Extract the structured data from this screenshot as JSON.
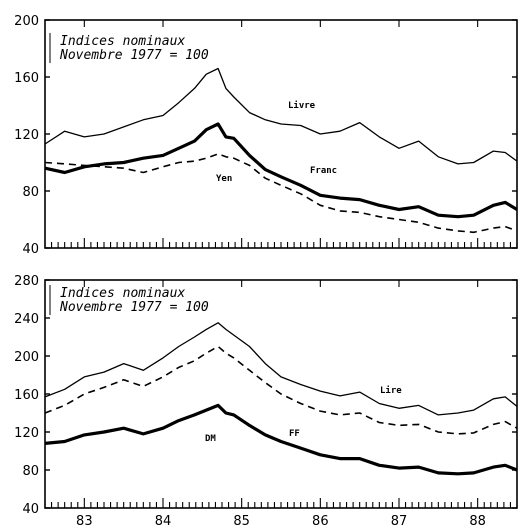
{
  "chart_data": [
    {
      "type": "line",
      "title": "",
      "xlabel": "",
      "ylabel": "",
      "annotation": [
        "Indices nominaux",
        "Novembre 1977 = 100"
      ],
      "ylim": [
        40,
        200
      ],
      "yticks": [
        40,
        80,
        120,
        160,
        200
      ],
      "xlim": [
        82.5,
        88.5
      ],
      "xticks": [
        83,
        84,
        85,
        86,
        87,
        88
      ],
      "xtick_labels": [
        "83",
        "84",
        "85",
        "86",
        "87",
        "88"
      ],
      "grid": false,
      "series": [
        {
          "name": "Livre",
          "style": "thin",
          "x": [
            82.5,
            82.75,
            83.0,
            83.25,
            83.5,
            83.75,
            84.0,
            84.2,
            84.4,
            84.55,
            84.7,
            84.8,
            84.9,
            85.1,
            85.3,
            85.5,
            85.75,
            86.0,
            86.25,
            86.5,
            86.75,
            87.0,
            87.25,
            87.5,
            87.75,
            87.95,
            88.2,
            88.35,
            88.5
          ],
          "y": [
            113,
            122,
            118,
            120,
            125,
            130,
            133,
            142,
            152,
            162,
            166,
            152,
            146,
            135,
            130,
            127,
            126,
            120,
            122,
            128,
            118,
            110,
            115,
            104,
            99,
            100,
            108,
            107,
            101
          ]
        },
        {
          "name": "Franc",
          "style": "thick",
          "x": [
            82.5,
            82.75,
            83.0,
            83.25,
            83.5,
            83.75,
            84.0,
            84.2,
            84.4,
            84.55,
            84.7,
            84.8,
            84.9,
            85.1,
            85.3,
            85.5,
            85.75,
            86.0,
            86.25,
            86.5,
            86.75,
            87.0,
            87.25,
            87.5,
            87.75,
            87.95,
            88.2,
            88.35,
            88.5
          ],
          "y": [
            96,
            93,
            97,
            99,
            100,
            103,
            105,
            110,
            115,
            123,
            127,
            118,
            117,
            105,
            95,
            90,
            84,
            77,
            75,
            74,
            70,
            67,
            69,
            63,
            62,
            63,
            70,
            72,
            67
          ]
        },
        {
          "name": "Yen",
          "style": "dashed",
          "x": [
            82.5,
            82.75,
            83.0,
            83.25,
            83.5,
            83.75,
            84.0,
            84.2,
            84.4,
            84.55,
            84.7,
            84.8,
            84.9,
            85.1,
            85.3,
            85.5,
            85.75,
            86.0,
            86.25,
            86.5,
            86.75,
            87.0,
            87.25,
            87.5,
            87.75,
            87.95,
            88.2,
            88.35,
            88.5
          ],
          "y": [
            100,
            99,
            98,
            97,
            96,
            93,
            97,
            100,
            101,
            103,
            106,
            104,
            103,
            98,
            89,
            84,
            78,
            70,
            66,
            65,
            62,
            60,
            58,
            54,
            52,
            51,
            54,
            55,
            52
          ]
        }
      ]
    },
    {
      "type": "line",
      "title": "",
      "xlabel": "",
      "ylabel": "",
      "annotation": [
        "Indices nominaux",
        "Novembre 1977 = 100"
      ],
      "ylim": [
        40,
        280
      ],
      "yticks": [
        40,
        80,
        120,
        160,
        200,
        240,
        280
      ],
      "xlim": [
        82.5,
        88.5
      ],
      "xticks": [
        83,
        84,
        85,
        86,
        87,
        88
      ],
      "xtick_labels": [
        "83",
        "84",
        "85",
        "86",
        "87",
        "88"
      ],
      "grid": false,
      "series": [
        {
          "name": "Lire",
          "style": "thin",
          "x": [
            82.5,
            82.75,
            83.0,
            83.25,
            83.5,
            83.75,
            84.0,
            84.2,
            84.4,
            84.55,
            84.7,
            84.8,
            84.9,
            85.1,
            85.3,
            85.5,
            85.75,
            86.0,
            86.25,
            86.5,
            86.75,
            87.0,
            87.25,
            87.5,
            87.75,
            87.95,
            88.2,
            88.35,
            88.5
          ],
          "y": [
            157,
            165,
            178,
            183,
            192,
            185,
            198,
            210,
            220,
            228,
            235,
            228,
            222,
            210,
            192,
            178,
            170,
            163,
            158,
            162,
            150,
            145,
            148,
            138,
            140,
            143,
            155,
            157,
            147
          ]
        },
        {
          "name": "FF",
          "style": "dashed",
          "x": [
            82.5,
            82.75,
            83.0,
            83.25,
            83.5,
            83.75,
            84.0,
            84.2,
            84.4,
            84.55,
            84.7,
            84.8,
            84.9,
            85.1,
            85.3,
            85.5,
            85.75,
            86.0,
            86.25,
            86.5,
            86.75,
            87.0,
            87.25,
            87.5,
            87.75,
            87.95,
            88.2,
            88.35,
            88.5
          ],
          "y": [
            140,
            148,
            160,
            167,
            175,
            168,
            178,
            188,
            195,
            203,
            210,
            203,
            198,
            185,
            172,
            160,
            150,
            142,
            138,
            140,
            130,
            127,
            128,
            120,
            118,
            119,
            128,
            131,
            124
          ]
        },
        {
          "name": "DM",
          "style": "thick",
          "x": [
            82.5,
            82.75,
            83.0,
            83.25,
            83.5,
            83.75,
            84.0,
            84.2,
            84.4,
            84.55,
            84.7,
            84.8,
            84.9,
            85.1,
            85.3,
            85.5,
            85.75,
            86.0,
            86.25,
            86.5,
            86.75,
            87.0,
            87.25,
            87.5,
            87.75,
            87.95,
            88.2,
            88.35,
            88.5
          ],
          "y": [
            108,
            110,
            117,
            120,
            124,
            118,
            124,
            132,
            138,
            143,
            148,
            140,
            138,
            127,
            117,
            110,
            103,
            96,
            92,
            92,
            85,
            82,
            83,
            77,
            76,
            77,
            83,
            85,
            80
          ]
        }
      ]
    }
  ]
}
